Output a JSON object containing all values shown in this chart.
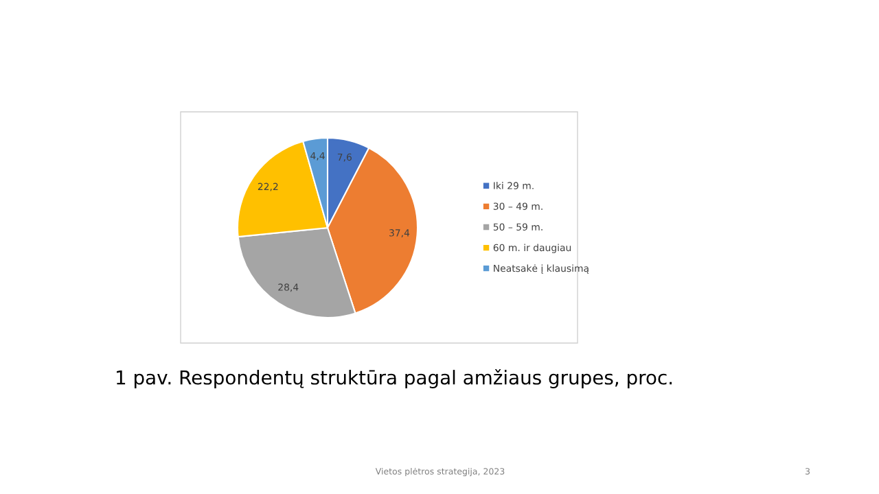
{
  "chart_data": {
    "type": "pie",
    "title": "1 pav. Respondentų struktūra pagal amžiaus grupes, proc.",
    "categories": [
      "Iki 29 m.",
      "30 – 49 m.",
      "50 – 59 m.",
      "60 m. ir daugiau",
      "Neatsakė į klausimą"
    ],
    "values": [
      7.6,
      37.4,
      28.4,
      22.2,
      4.4
    ],
    "colors": [
      "#4472c4",
      "#ed7d31",
      "#a5a5a5",
      "#ffc000",
      "#5b9bd5"
    ],
    "value_labels": [
      "7,6",
      "37,4",
      "28,4",
      "22,2",
      "4,4"
    ],
    "legend": "right",
    "annotations": [
      "Vietos plėtros strategija, 2023",
      "3"
    ]
  }
}
